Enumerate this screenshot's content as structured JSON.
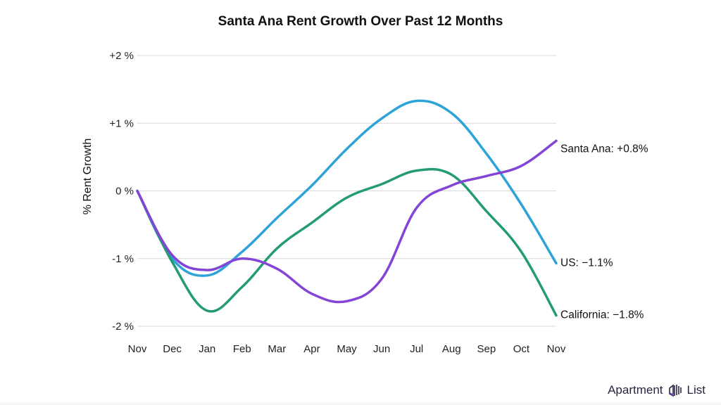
{
  "chart_data": {
    "type": "line",
    "title": "Santa Ana Rent Growth Over Past 12 Months",
    "ylabel": "% Rent Growth",
    "xlabel": "",
    "categories": [
      "Nov",
      "Dec",
      "Jan",
      "Feb",
      "Mar",
      "Apr",
      "May",
      "Jun",
      "Jul",
      "Aug",
      "Sep",
      "Oct",
      "Nov"
    ],
    "ylim": [
      -2,
      2
    ],
    "yticks": [
      2,
      1,
      0,
      -1,
      -2
    ],
    "ytick_labels": [
      "+2 %",
      "+1 %",
      "0 %",
      "-1 %",
      "-2 %"
    ],
    "grid": true,
    "legend": "end-of-line labels",
    "series": [
      {
        "name": "US",
        "end_label": "US: −1.1%",
        "color": "#2ea3d8",
        "values": [
          0,
          -1.0,
          -1.25,
          -0.9,
          -0.4,
          0.08,
          0.62,
          1.07,
          1.33,
          1.15,
          0.55,
          -0.2,
          -1.07
        ]
      },
      {
        "name": "California",
        "end_label": "California: −1.8%",
        "color": "#239b74",
        "values": [
          0,
          -1.05,
          -1.77,
          -1.42,
          -0.85,
          -0.47,
          -0.1,
          0.1,
          0.3,
          0.24,
          -0.3,
          -0.9,
          -1.84
        ]
      },
      {
        "name": "Santa Ana",
        "end_label": "Santa Ana: +0.8%",
        "color": "#8445d6",
        "values": [
          0,
          -0.95,
          -1.17,
          -1.0,
          -1.15,
          -1.52,
          -1.63,
          -1.3,
          -0.25,
          0.08,
          0.22,
          0.37,
          0.74
        ]
      }
    ]
  },
  "branding": {
    "logo_text_left": "Apartment",
    "logo_text_right": "List"
  }
}
